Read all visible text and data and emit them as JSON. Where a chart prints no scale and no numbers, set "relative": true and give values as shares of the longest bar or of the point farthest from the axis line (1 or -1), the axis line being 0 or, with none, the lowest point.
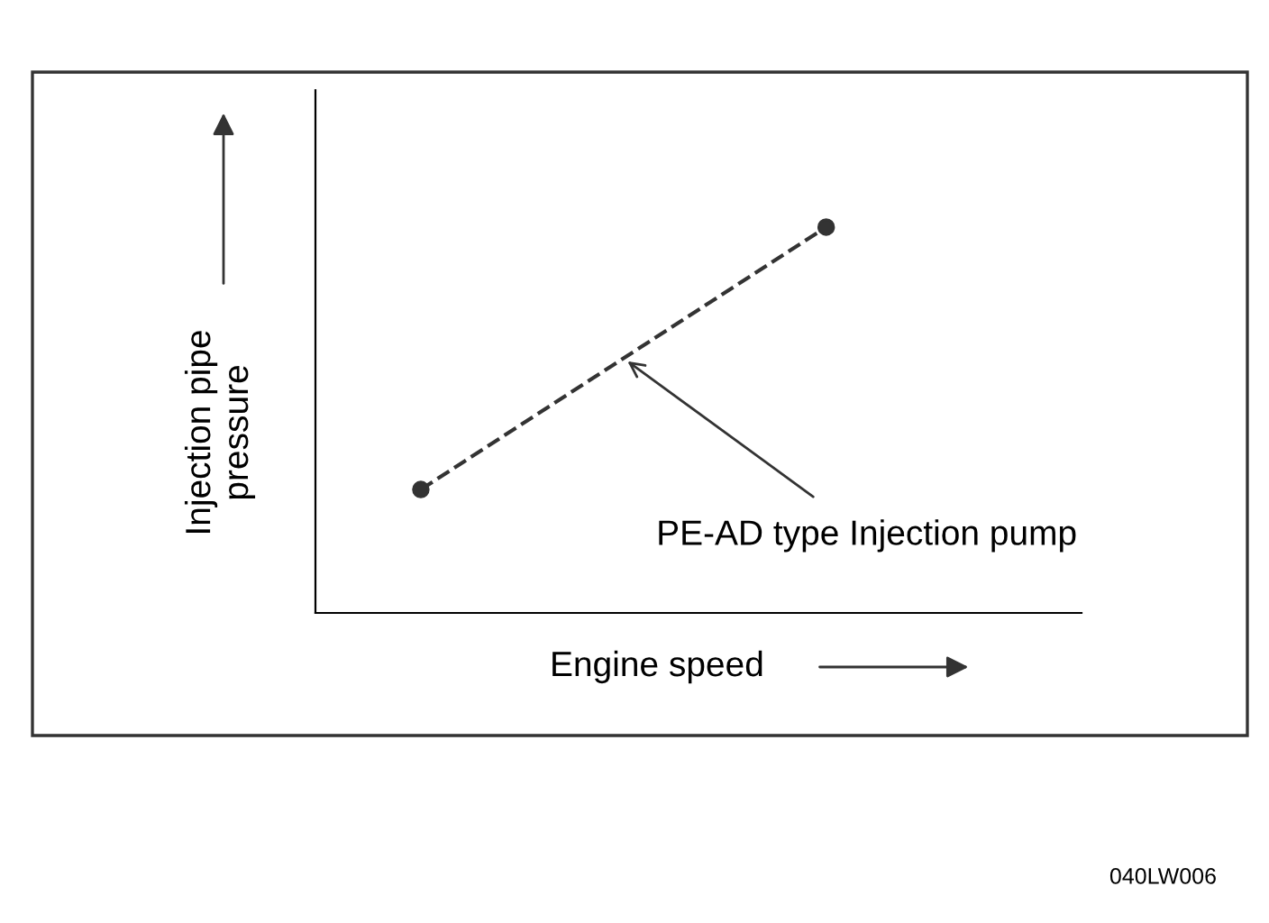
{
  "chart_data": {
    "type": "line",
    "relative": true,
    "xlabel": "Engine speed",
    "ylabel": "Injection pipe\npressure",
    "categories": [
      null,
      null
    ],
    "series": [
      {
        "color": "#333333",
        "values": [
          0.32,
          1
        ]
      }
    ],
    "marker": "circle",
    "line_style": "dashed",
    "grid": false,
    "legend": false,
    "annotations": [
      "PE-AD type Injection pump",
      "040LW006"
    ]
  }
}
